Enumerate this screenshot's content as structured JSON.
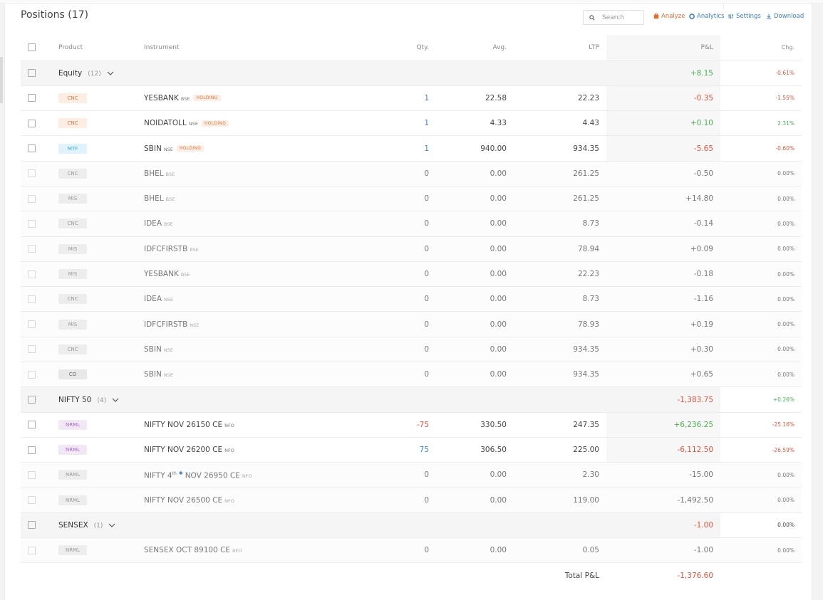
{
  "title": "Positions (17)",
  "search": {
    "placeholder": "Search"
  },
  "toolbar": {
    "analyze": "Analyze",
    "analytics": "Analytics",
    "settings": "Settings",
    "download": "Download"
  },
  "columns": {
    "product": "Product",
    "instrument": "Instrument",
    "qty": "Qty.",
    "avg": "Avg.",
    "ltp": "LTP",
    "pnl": "P&L",
    "chg": "Chg."
  },
  "colors": {
    "profit": "#4caf50",
    "loss": "#e8533a",
    "link": "#3b7fd1",
    "accent": "#e86a2c"
  },
  "groups": [
    {
      "name": "Equity",
      "count": "(12)",
      "pnl": "+8.15",
      "pnl_sign": "pos",
      "chg": "-0.61%",
      "chg_sign": "neg",
      "rows": [
        {
          "product": "CNC",
          "badge": "b-cnc",
          "symbol": "YESBANK",
          "exchange": "BSE",
          "tag": "HOLDING",
          "qty": "1",
          "qty_cls": "blue",
          "avg": "22.58",
          "ltp": "22.23",
          "pnl": "-0.35",
          "pnl_cls": "neg",
          "chg": "-1.55%",
          "chg_cls": "neg",
          "active": true
        },
        {
          "product": "CNC",
          "badge": "b-cnc",
          "symbol": "NOIDATOLL",
          "exchange": "NSE",
          "tag": "HOLDING",
          "qty": "1",
          "qty_cls": "blue",
          "avg": "4.33",
          "ltp": "4.43",
          "pnl": "+0.10",
          "pnl_cls": "pos",
          "chg": "2.31%",
          "chg_cls": "pos",
          "active": true
        },
        {
          "product": "MTF",
          "badge": "b-mtf",
          "symbol": "SBIN",
          "exchange": "NSE",
          "tag": "HOLDING",
          "qty": "1",
          "qty_cls": "blue",
          "avg": "940.00",
          "ltp": "934.35",
          "pnl": "-5.65",
          "pnl_cls": "neg",
          "chg": "-0.60%",
          "chg_cls": "neg",
          "active": true
        },
        {
          "product": "CNC",
          "badge": "b-grey",
          "symbol": "BHEL",
          "exchange": "BSE",
          "tag": "",
          "qty": "0",
          "qty_cls": "",
          "avg": "0.00",
          "ltp": "261.25",
          "pnl": "-0.50",
          "pnl_cls": "",
          "chg": "0.00%",
          "chg_cls": "",
          "active": false
        },
        {
          "product": "MIS",
          "badge": "b-grey",
          "symbol": "BHEL",
          "exchange": "BSE",
          "tag": "",
          "qty": "0",
          "qty_cls": "",
          "avg": "0.00",
          "ltp": "261.25",
          "pnl": "+14.80",
          "pnl_cls": "",
          "chg": "0.00%",
          "chg_cls": "",
          "active": false
        },
        {
          "product": "CNC",
          "badge": "b-grey",
          "symbol": "IDEA",
          "exchange": "BSE",
          "tag": "",
          "qty": "0",
          "qty_cls": "",
          "avg": "0.00",
          "ltp": "8.73",
          "pnl": "-0.14",
          "pnl_cls": "",
          "chg": "0.00%",
          "chg_cls": "",
          "active": false
        },
        {
          "product": "MIS",
          "badge": "b-grey",
          "symbol": "IDFCFIRSTB",
          "exchange": "BSE",
          "tag": "",
          "qty": "0",
          "qty_cls": "",
          "avg": "0.00",
          "ltp": "78.94",
          "pnl": "+0.09",
          "pnl_cls": "",
          "chg": "0.00%",
          "chg_cls": "",
          "active": false
        },
        {
          "product": "MIS",
          "badge": "b-grey",
          "symbol": "YESBANK",
          "exchange": "BSE",
          "tag": "",
          "qty": "0",
          "qty_cls": "",
          "avg": "0.00",
          "ltp": "22.23",
          "pnl": "-0.18",
          "pnl_cls": "",
          "chg": "0.00%",
          "chg_cls": "",
          "active": false
        },
        {
          "product": "CNC",
          "badge": "b-grey",
          "symbol": "IDEA",
          "exchange": "NSE",
          "tag": "",
          "qty": "0",
          "qty_cls": "",
          "avg": "0.00",
          "ltp": "8.73",
          "pnl": "-1.16",
          "pnl_cls": "",
          "chg": "0.00%",
          "chg_cls": "",
          "active": false
        },
        {
          "product": "MIS",
          "badge": "b-grey",
          "symbol": "IDFCFIRSTB",
          "exchange": "NSE",
          "tag": "",
          "qty": "0",
          "qty_cls": "",
          "avg": "0.00",
          "ltp": "78.93",
          "pnl": "+0.19",
          "pnl_cls": "",
          "chg": "0.00%",
          "chg_cls": "",
          "active": false
        },
        {
          "product": "CNC",
          "badge": "b-grey",
          "symbol": "SBIN",
          "exchange": "NSE",
          "tag": "",
          "qty": "0",
          "qty_cls": "",
          "avg": "0.00",
          "ltp": "934.35",
          "pnl": "+0.30",
          "pnl_cls": "",
          "chg": "0.00%",
          "chg_cls": "",
          "active": false
        },
        {
          "product": "CO",
          "badge": "b-grey-dark",
          "symbol": "SBIN",
          "exchange": "NSE",
          "tag": "",
          "qty": "0",
          "qty_cls": "",
          "avg": "0.00",
          "ltp": "934.35",
          "pnl": "+0.65",
          "pnl_cls": "",
          "chg": "0.00%",
          "chg_cls": "",
          "active": false
        }
      ]
    },
    {
      "name": "NIFTY 50",
      "count": "(4)",
      "pnl": "-1,383.75",
      "pnl_sign": "neg",
      "chg": "+0.26%",
      "chg_sign": "pos",
      "rows": [
        {
          "product": "NRML",
          "badge": "b-nrml",
          "symbol": "NIFTY NOV 26150 CE",
          "exchange": "NFO",
          "tag": "",
          "qty": "-75",
          "qty_cls": "neg",
          "avg": "330.50",
          "ltp": "247.35",
          "pnl": "+6,236.25",
          "pnl_cls": "pos",
          "chg": "-25.16%",
          "chg_cls": "neg",
          "active": true
        },
        {
          "product": "NRML",
          "badge": "b-nrml",
          "symbol": "NIFTY NOV 26200 CE",
          "exchange": "NFO",
          "tag": "",
          "qty": "75",
          "qty_cls": "blue",
          "avg": "306.50",
          "ltp": "225.00",
          "pnl": "-6,112.50",
          "pnl_cls": "neg",
          "chg": "-26.59%",
          "chg_cls": "neg",
          "active": true
        },
        {
          "product": "NRML",
          "badge": "b-grey",
          "symbol": "NIFTY 4",
          "sup": "th",
          "weekly": true,
          "symbol_rest": "NOV 26950 CE",
          "exchange": "NFO",
          "tag": "",
          "qty": "0",
          "qty_cls": "",
          "avg": "0.00",
          "ltp": "2.30",
          "pnl": "-15.00",
          "pnl_cls": "",
          "chg": "0.00%",
          "chg_cls": "",
          "active": false
        },
        {
          "product": "NRML",
          "badge": "b-grey",
          "symbol": "NIFTY NOV 26500 CE",
          "exchange": "NFO",
          "tag": "",
          "qty": "0",
          "qty_cls": "",
          "avg": "0.00",
          "ltp": "119.00",
          "pnl": "-1,492.50",
          "pnl_cls": "",
          "chg": "0.00%",
          "chg_cls": "",
          "active": false
        }
      ]
    },
    {
      "name": "SENSEX",
      "count": "(1)",
      "pnl": "-1.00",
      "pnl_sign": "neg",
      "chg": "0.00%",
      "chg_sign": "",
      "rows": [
        {
          "product": "NRML",
          "badge": "b-grey",
          "symbol": "SENSEX OCT 89100 CE",
          "exchange": "BFO",
          "tag": "",
          "qty": "0",
          "qty_cls": "",
          "avg": "0.00",
          "ltp": "0.05",
          "pnl": "-1.00",
          "pnl_cls": "",
          "chg": "0.00%",
          "chg_cls": "",
          "active": false
        }
      ]
    }
  ],
  "total": {
    "label": "Total P&L",
    "value": "-1,376.60"
  }
}
